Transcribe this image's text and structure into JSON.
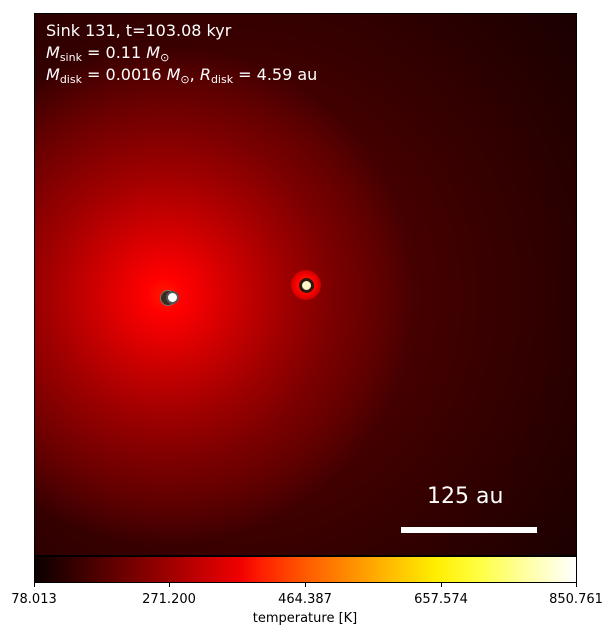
{
  "annotations": {
    "line1": "Sink 131, t=103.08 kyr",
    "line2_symbol": "M",
    "line2_sub": "sink",
    "line2_eq": " = 0.11 ",
    "line2_unit": "M",
    "line2_unit_sub": "⊙",
    "line3_symbol": "M",
    "line3_sub": "disk",
    "line3_eq": " = 0.0016 ",
    "line3_unit": "M",
    "line3_unit_sub": "⊙",
    "line3_sep": ", ",
    "line3_r": "R",
    "line3_r_sub": "disk",
    "line3_r_eq": " = 4.59 au"
  },
  "scalebar": {
    "label": "125 au"
  },
  "colorbar": {
    "label": "temperature [K]",
    "ticks": [
      "78.013",
      "271.200",
      "464.387",
      "657.574",
      "850.761"
    ]
  },
  "colors": {
    "colormap": "hot",
    "annotation_text": "#ffffff"
  }
}
